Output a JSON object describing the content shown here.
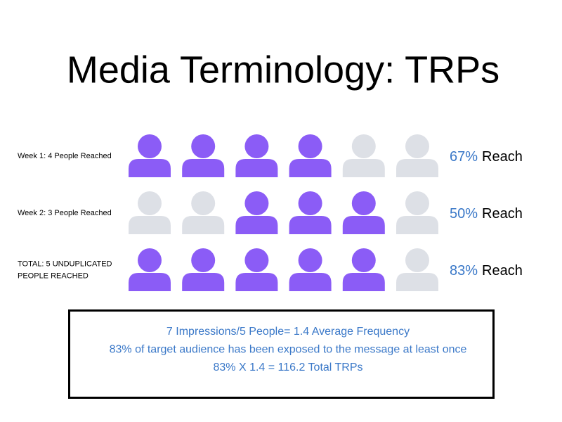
{
  "title": "Media Terminology: TRPs",
  "rows": [
    {
      "label": [
        "Week 1: 4 People Reached"
      ],
      "reached": [
        true,
        true,
        true,
        true,
        false,
        false
      ],
      "percent": "67%",
      "suffix": "Reach"
    },
    {
      "label": [
        "Week 2: 3 People Reached"
      ],
      "reached": [
        false,
        false,
        true,
        true,
        true,
        false
      ],
      "percent": "50%",
      "suffix": "Reach"
    },
    {
      "label": [
        "TOTAL: 5 UNDUPLICATED",
        "PEOPLE REACHED"
      ],
      "reached": [
        true,
        true,
        true,
        true,
        true,
        false
      ],
      "percent": "83%",
      "suffix": "Reach"
    }
  ],
  "summary": [
    "7 Impressions/5 People= 1.4 Average Frequency",
    "83% of target audience has been exposed to the message at least once",
    "83% X 1.4 = 116.2 Total TRPs"
  ],
  "colors": {
    "reached": "#8b5cf6",
    "not_reached": "#dde0e6",
    "percent": "#3a78c8"
  }
}
